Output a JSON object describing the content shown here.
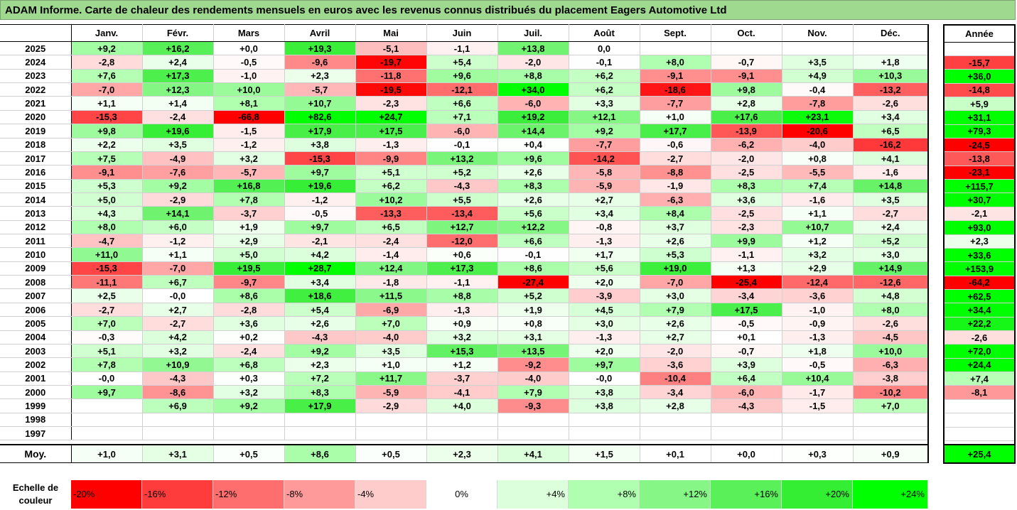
{
  "title": "ADAM Informe. Carte de chaleur des rendements mensuels en euros avec les revenus connus distribués du placement Eagers Automotive Ltd",
  "chart_data": {
    "type": "heatmap",
    "columns": [
      "Janv.",
      "Févr.",
      "Mars",
      "Avril",
      "Mai",
      "Juin",
      "Juil.",
      "Août",
      "Sept.",
      "Oct.",
      "Nov.",
      "Déc."
    ],
    "year_column_label": "Année",
    "average_label": "Moy.",
    "rows": [
      {
        "year": "2025",
        "months": [
          "+9,2",
          "+16,2",
          "+0,0",
          "+19,3",
          "-5,1",
          "-1,1",
          "+13,8",
          "0,0",
          "",
          "",
          "",
          ""
        ],
        "annual": ""
      },
      {
        "year": "2024",
        "months": [
          "-2,8",
          "+2,4",
          "-0,5",
          "-9,6",
          "-19,7",
          "+5,4",
          "-2,0",
          "-0,1",
          "+8,0",
          "-0,7",
          "+3,5",
          "+1,8"
        ],
        "annual": "-15,7"
      },
      {
        "year": "2023",
        "months": [
          "+7,6",
          "+17,3",
          "-1,0",
          "+2,3",
          "-11,8",
          "+9,6",
          "+8,8",
          "+6,2",
          "-9,1",
          "-9,1",
          "+4,9",
          "+10,3"
        ],
        "annual": "+36,0"
      },
      {
        "year": "2022",
        "months": [
          "-7,0",
          "+12,3",
          "+10,0",
          "-5,7",
          "-19,5",
          "-12,1",
          "+34,0",
          "+6,2",
          "-18,6",
          "+9,8",
          "-0,4",
          "-13,2"
        ],
        "annual": "-14,8"
      },
      {
        "year": "2021",
        "months": [
          "+1,1",
          "+1,4",
          "+8,1",
          "+10,7",
          "-2,3",
          "+6,6",
          "-6,0",
          "+3,3",
          "-7,7",
          "+2,8",
          "-7,8",
          "-2,6"
        ],
        "annual": "+5,9"
      },
      {
        "year": "2020",
        "months": [
          "-15,3",
          "-2,4",
          "-66,8",
          "+82,6",
          "+24,7",
          "+7,1",
          "+19,2",
          "+12,1",
          "+1,0",
          "+17,6",
          "+23,1",
          "+3,4"
        ],
        "annual": "+31,1"
      },
      {
        "year": "2019",
        "months": [
          "+9,8",
          "+19,6",
          "-1,5",
          "+17,9",
          "+17,5",
          "-6,0",
          "+14,4",
          "+9,2",
          "+17,7",
          "-13,9",
          "-20,6",
          "+6,5"
        ],
        "annual": "+79,3"
      },
      {
        "year": "2018",
        "months": [
          "+2,2",
          "+3,5",
          "-1,2",
          "+3,8",
          "-1,3",
          "-0,1",
          "+0,4",
          "-7,7",
          "-0,6",
          "-6,2",
          "-4,0",
          "-16,2"
        ],
        "annual": "-24,5"
      },
      {
        "year": "2017",
        "months": [
          "+7,5",
          "-4,9",
          "+3,2",
          "-15,3",
          "-9,9",
          "+13,2",
          "+9,6",
          "-14,2",
          "-2,7",
          "-2,0",
          "+0,8",
          "+4,1"
        ],
        "annual": "-13,8"
      },
      {
        "year": "2016",
        "months": [
          "-9,1",
          "-7,6",
          "-5,7",
          "+9,7",
          "+5,1",
          "+5,2",
          "+2,6",
          "-5,8",
          "-8,8",
          "-2,5",
          "-5,5",
          "-1,6"
        ],
        "annual": "-23,1"
      },
      {
        "year": "2015",
        "months": [
          "+5,3",
          "+9,2",
          "+16,8",
          "+19,6",
          "+6,2",
          "-4,3",
          "+8,3",
          "-5,9",
          "-1,9",
          "+8,3",
          "+7,4",
          "+14,8"
        ],
        "annual": "+115,7"
      },
      {
        "year": "2014",
        "months": [
          "+5,0",
          "-2,9",
          "+7,8",
          "-1,2",
          "+10,2",
          "+5,5",
          "+2,6",
          "+2,7",
          "-6,3",
          "+3,6",
          "-1,6",
          "+3,5"
        ],
        "annual": "+30,7"
      },
      {
        "year": "2013",
        "months": [
          "+4,3",
          "+14,1",
          "-3,7",
          "-0,5",
          "-13,3",
          "-13,4",
          "+5,6",
          "+3,4",
          "+8,4",
          "-2,5",
          "+1,1",
          "-2,7"
        ],
        "annual": "-2,1"
      },
      {
        "year": "2012",
        "months": [
          "+8,0",
          "+6,0",
          "+1,9",
          "+9,7",
          "+6,5",
          "+12,7",
          "+12,2",
          "-0,8",
          "+3,7",
          "-2,3",
          "+10,7",
          "+2,4"
        ],
        "annual": "+93,0"
      },
      {
        "year": "2011",
        "months": [
          "-4,7",
          "-1,2",
          "+2,9",
          "-2,1",
          "-2,4",
          "-12,0",
          "+6,6",
          "-1,3",
          "+2,6",
          "+9,9",
          "+1,2",
          "+5,2"
        ],
        "annual": "+2,3"
      },
      {
        "year": "2010",
        "months": [
          "+11,0",
          "+1,1",
          "+5,0",
          "+4,2",
          "-1,4",
          "+0,6",
          "-0,1",
          "+1,7",
          "+5,3",
          "-1,1",
          "+3,2",
          "+3,0"
        ],
        "annual": "+33,6"
      },
      {
        "year": "2009",
        "months": [
          "-15,3",
          "-7,0",
          "+19,5",
          "+28,7",
          "+12,4",
          "+17,3",
          "+8,6",
          "+5,6",
          "+19,0",
          "+1,3",
          "+2,9",
          "+14,9"
        ],
        "annual": "+153,9"
      },
      {
        "year": "2008",
        "months": [
          "-11,1",
          "+6,7",
          "-9,7",
          "+3,4",
          "-1,8",
          "-1,1",
          "-27,4",
          "+2,0",
          "-7,0",
          "-25,4",
          "-12,4",
          "-12,6"
        ],
        "annual": "-64,2"
      },
      {
        "year": "2007",
        "months": [
          "+2,5",
          "-0,0",
          "+8,6",
          "+18,6",
          "+11,5",
          "+8,8",
          "+5,2",
          "-3,9",
          "+3,0",
          "-3,4",
          "-3,6",
          "+4,8"
        ],
        "annual": "+62,5"
      },
      {
        "year": "2006",
        "months": [
          "-2,7",
          "+2,7",
          "-2,8",
          "+5,4",
          "-6,9",
          "-1,3",
          "+1,9",
          "+4,5",
          "+7,9",
          "+17,5",
          "-1,0",
          "+8,0"
        ],
        "annual": "+34,4"
      },
      {
        "year": "2005",
        "months": [
          "+7,0",
          "-2,7",
          "+3,6",
          "+2,6",
          "+7,0",
          "+0,9",
          "+0,8",
          "+3,0",
          "+2,6",
          "-0,5",
          "-0,9",
          "-2,6"
        ],
        "annual": "+22,2"
      },
      {
        "year": "2004",
        "months": [
          "-0,3",
          "+4,2",
          "+0,2",
          "-4,3",
          "-4,0",
          "+3,2",
          "+3,1",
          "-1,3",
          "+2,7",
          "+0,1",
          "-1,3",
          "-4,5"
        ],
        "annual": "-2,6"
      },
      {
        "year": "2003",
        "months": [
          "+5,1",
          "+3,2",
          "-2,4",
          "+9,2",
          "+3,5",
          "+15,3",
          "+13,5",
          "+2,0",
          "-2,0",
          "-0,7",
          "+1,8",
          "+10,0"
        ],
        "annual": "+72,0"
      },
      {
        "year": "2002",
        "months": [
          "+7,8",
          "+10,9",
          "+6,8",
          "+2,3",
          "+1,0",
          "+1,2",
          "-9,2",
          "+9,7",
          "-3,6",
          "+3,9",
          "-0,5",
          "-6,3"
        ],
        "annual": "+24,4"
      },
      {
        "year": "2001",
        "months": [
          "-0,0",
          "-4,3",
          "+0,3",
          "+7,2",
          "+11,7",
          "-3,7",
          "-4,0",
          "-0,0",
          "-10,4",
          "+6,4",
          "+10,4",
          "-3,8"
        ],
        "annual": "+7,4"
      },
      {
        "year": "2000",
        "months": [
          "+9,7",
          "-8,6",
          "+3,2",
          "+8,3",
          "-5,9",
          "-4,1",
          "+7,9",
          "+3,8",
          "-3,4",
          "-6,0",
          "-1,7",
          "-10,2"
        ],
        "annual": "-8,1"
      },
      {
        "year": "1999",
        "months": [
          "",
          "+6,9",
          "+9,2",
          "+17,9",
          "-2,9",
          "+4,0",
          "-9,3",
          "+3,8",
          "+2,8",
          "-4,3",
          "-1,5",
          "+7,0"
        ],
        "annual": ""
      },
      {
        "year": "1998",
        "months": [
          "",
          "",
          "",
          "",
          "",
          "",
          "",
          "",
          "",
          "",
          "",
          ""
        ],
        "annual": ""
      },
      {
        "year": "1997",
        "months": [
          "",
          "",
          "",
          "",
          "",
          "",
          "",
          "",
          "",
          "",
          "",
          ""
        ],
        "annual": ""
      }
    ],
    "averages": {
      "months": [
        "+1,0",
        "+3,1",
        "+0,5",
        "+8,6",
        "+0,5",
        "+2,3",
        "+4,1",
        "+1,5",
        "+0,1",
        "+0,0",
        "+0,3",
        "+0,9"
      ],
      "annual": "+25,4"
    },
    "color_scale": {
      "label": "Echelle de couleur",
      "stops": [
        {
          "label": "-20%",
          "value": -20,
          "color": "#ff0000"
        },
        {
          "label": "-16%",
          "value": -16,
          "color": "#ff3c3c"
        },
        {
          "label": "-12%",
          "value": -12,
          "color": "#ff6e6e"
        },
        {
          "label": "-8%",
          "value": -8,
          "color": "#ff9a9a"
        },
        {
          "label": "-4%",
          "value": -4,
          "color": "#ffcccc"
        },
        {
          "label": "0%",
          "value": 0,
          "color": "#ffffff"
        },
        {
          "label": "+4%",
          "value": 4,
          "color": "#dcffdc"
        },
        {
          "label": "+8%",
          "value": 8,
          "color": "#b0ffb0"
        },
        {
          "label": "+12%",
          "value": 12,
          "color": "#86f786"
        },
        {
          "label": "+16%",
          "value": 16,
          "color": "#5af05a"
        },
        {
          "label": "+20%",
          "value": 20,
          "color": "#33ee33"
        },
        {
          "label": "+24%",
          "value": 24,
          "color": "#00ff00"
        }
      ]
    }
  }
}
